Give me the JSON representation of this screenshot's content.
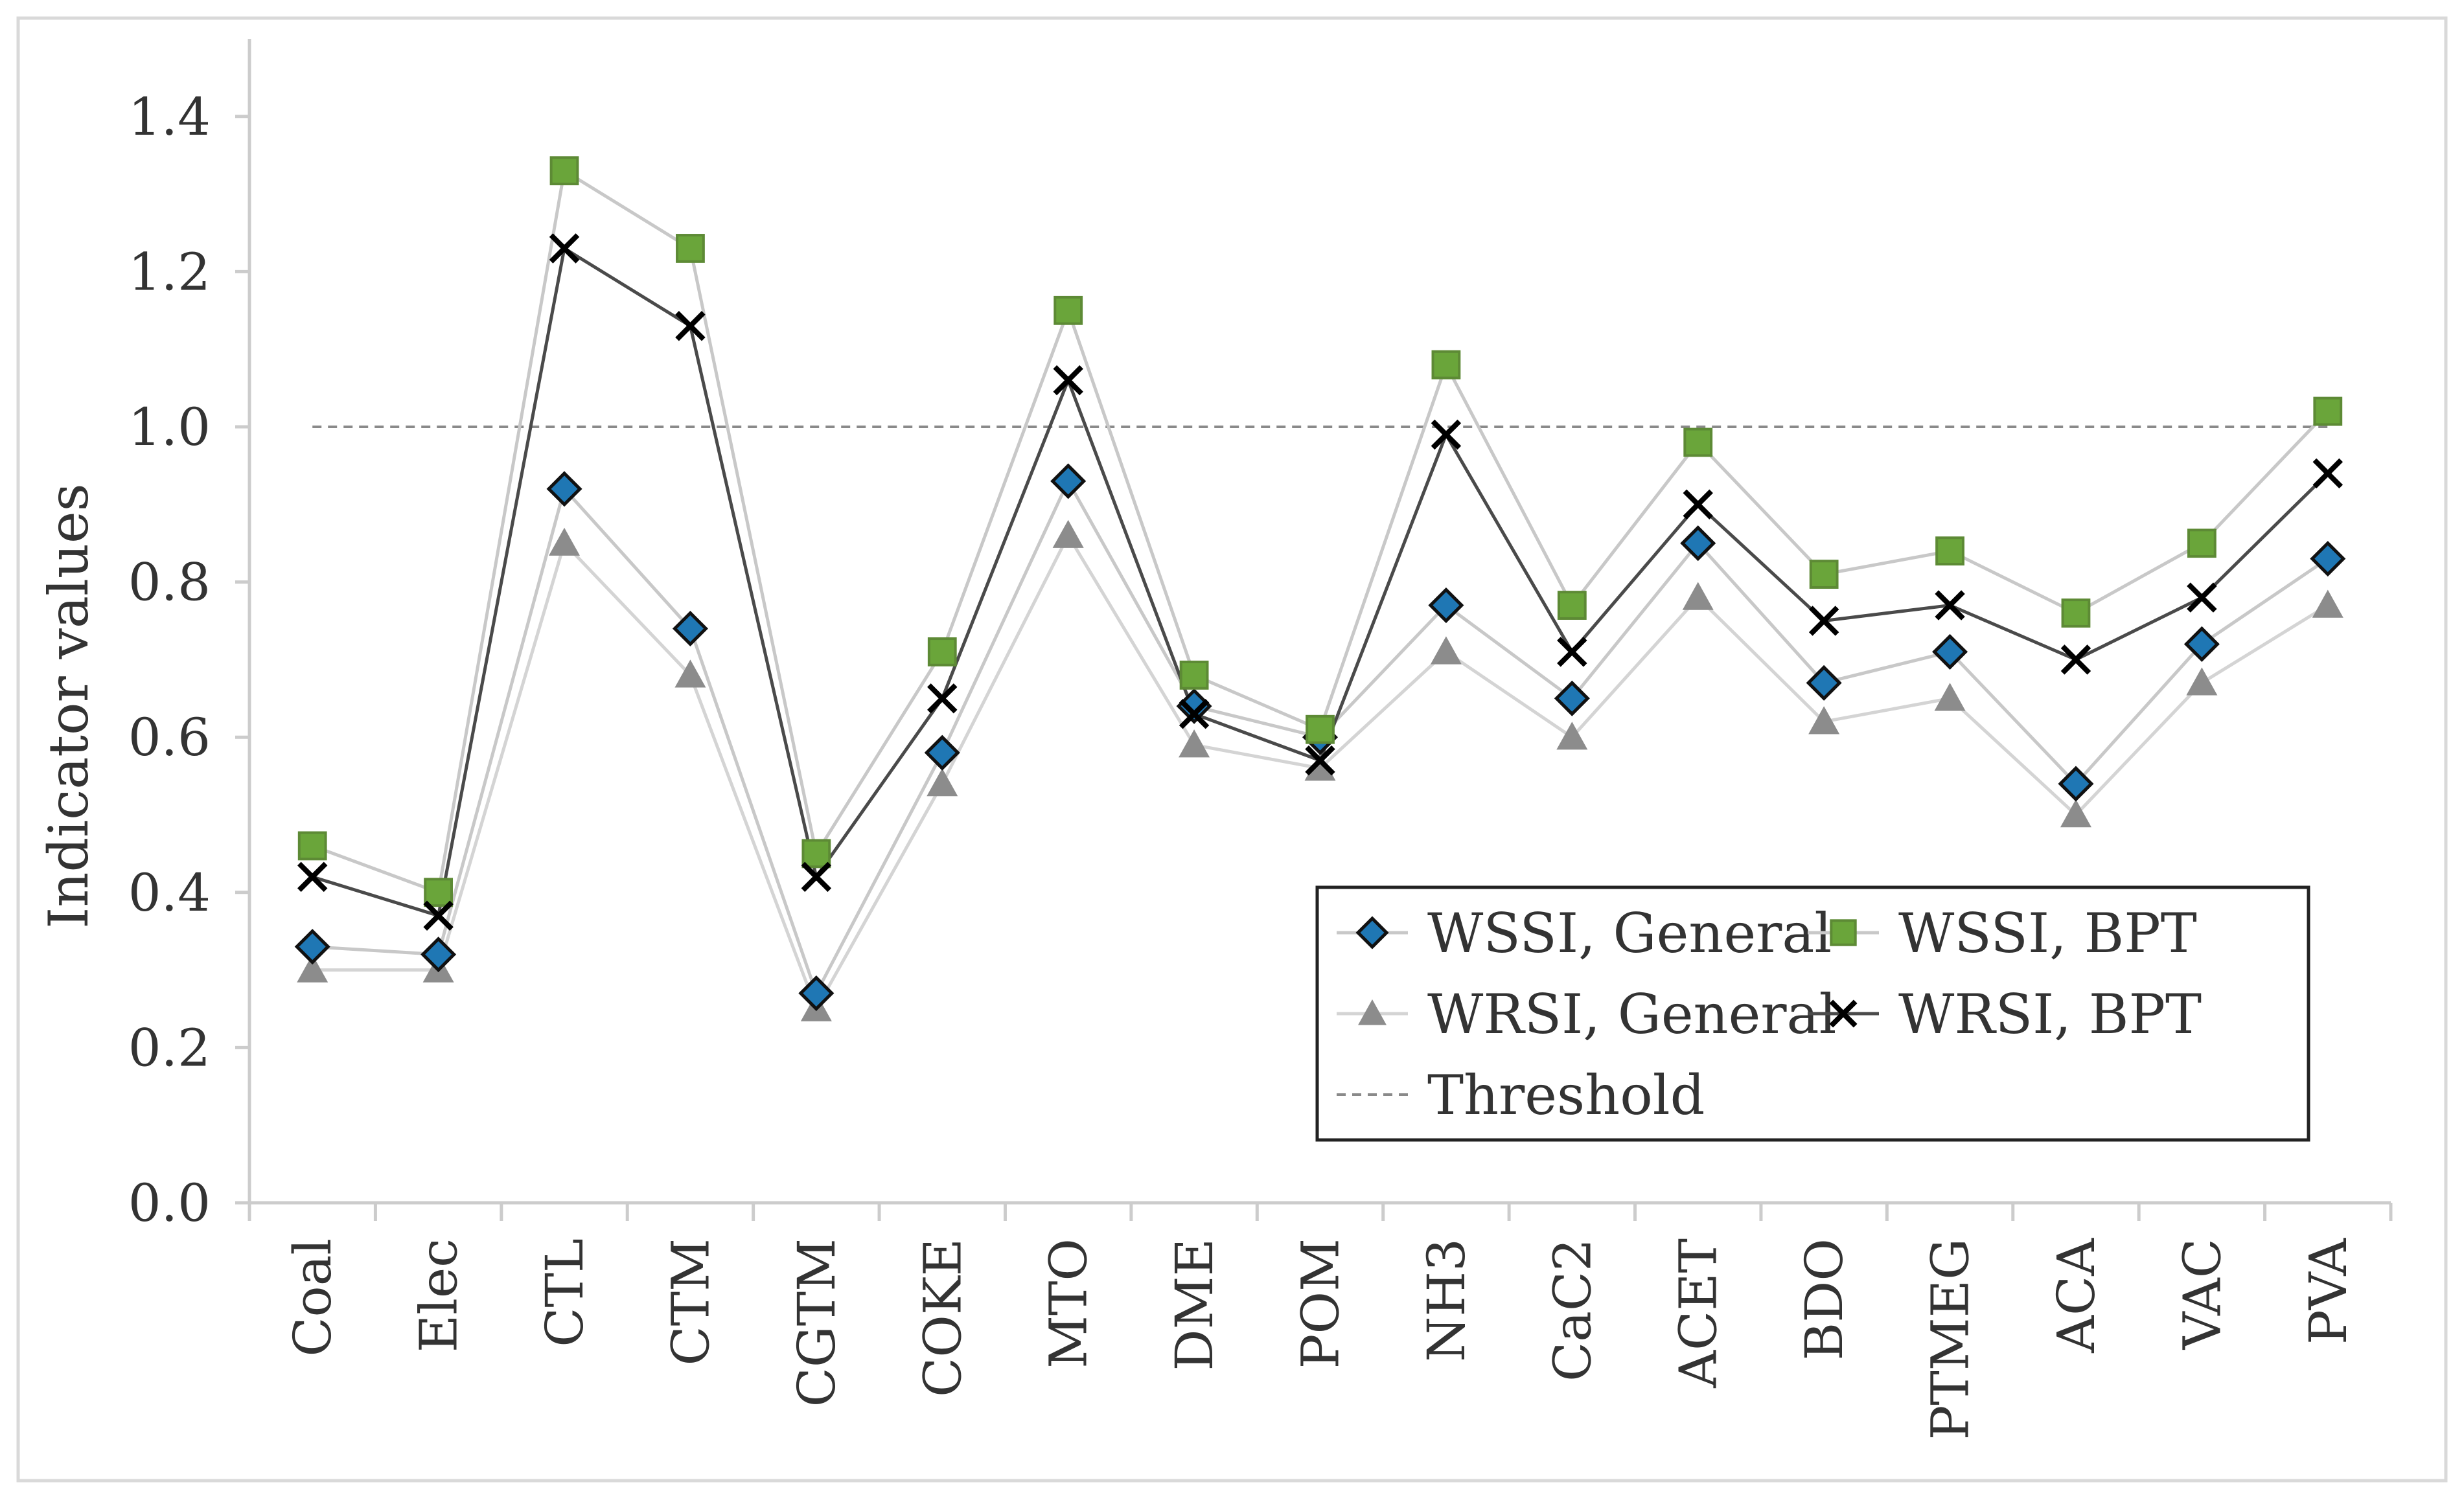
{
  "chart_data": {
    "type": "line",
    "title": "",
    "xlabel": "",
    "ylabel": "Indicator values",
    "ylim": [
      0.0,
      1.5
    ],
    "yticks": [
      0.0,
      0.2,
      0.4,
      0.6,
      0.8,
      1.0,
      1.2,
      1.4
    ],
    "ytick_labels": [
      "0.0",
      "0.2",
      "0.4",
      "0.6",
      "0.8",
      "1.0",
      "1.2",
      "1.4"
    ],
    "grid": false,
    "legend_position": "lower-right",
    "categories": [
      "Coal",
      "Elec",
      "CTL",
      "CTM",
      "CGTM",
      "COKE",
      "MTO",
      "DME",
      "POM",
      "NH3",
      "CaC2",
      "ACET",
      "BDO",
      "PTMEG",
      "ACA",
      "VAC",
      "PVA"
    ],
    "series": [
      {
        "name": "WSSI, General",
        "marker": "diamond",
        "color": "#1f77b4",
        "line_color": "#c8c8c8",
        "values": [
          0.33,
          0.32,
          0.92,
          0.74,
          0.27,
          0.58,
          0.93,
          0.64,
          0.6,
          0.77,
          0.65,
          0.85,
          0.67,
          0.71,
          0.54,
          0.72,
          0.83
        ]
      },
      {
        "name": "WSSI, BPT",
        "marker": "square",
        "color": "#6aa53a",
        "line_color": "#c8c8c8",
        "values": [
          0.46,
          0.4,
          1.33,
          1.23,
          0.45,
          0.71,
          1.15,
          0.68,
          0.61,
          1.08,
          0.77,
          0.98,
          0.81,
          0.84,
          0.76,
          0.85,
          1.02
        ]
      },
      {
        "name": "WRSI, General",
        "marker": "triangle",
        "color": "#8c8c8c",
        "line_color": "#d4d4d4",
        "values": [
          0.3,
          0.3,
          0.85,
          0.68,
          0.25,
          0.54,
          0.86,
          0.59,
          0.56,
          0.71,
          0.6,
          0.78,
          0.62,
          0.65,
          0.5,
          0.67,
          0.77
        ]
      },
      {
        "name": "WRSI, BPT",
        "marker": "x",
        "color": "#000000",
        "line_color": "#4a4a4a",
        "values": [
          0.42,
          0.37,
          1.23,
          1.13,
          0.42,
          0.65,
          1.06,
          0.63,
          0.57,
          0.99,
          0.71,
          0.9,
          0.75,
          0.77,
          0.7,
          0.78,
          0.94
        ]
      }
    ],
    "threshold": {
      "name": "Threshold",
      "value": 1.0,
      "color": "#8a8a8a",
      "style": "dashed"
    }
  }
}
